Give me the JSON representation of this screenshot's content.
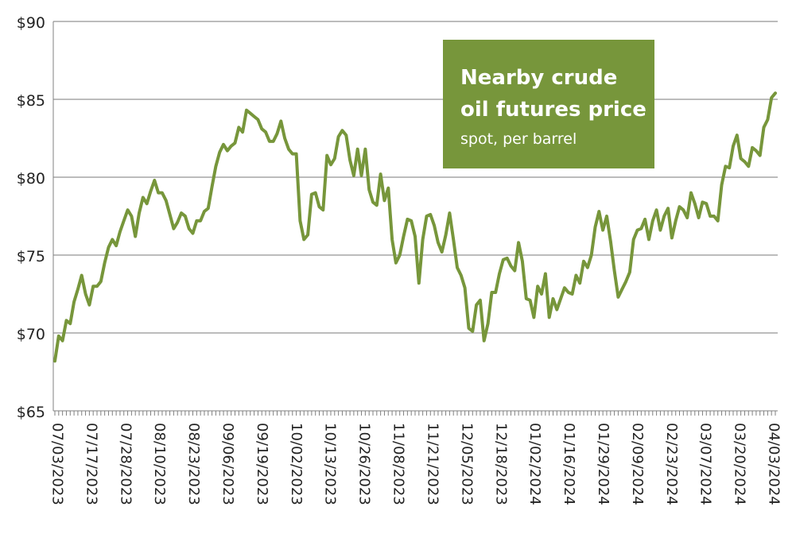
{
  "chart_data": {
    "type": "line",
    "title": "Nearby crude oil futures price",
    "subtitle": "spot, per barrel",
    "xlabel": "",
    "ylabel": "",
    "ylim": [
      65,
      90
    ],
    "y_ticks": [
      "$90",
      "$85",
      "$80",
      "$75",
      "$70",
      "$65"
    ],
    "y_tick_values": [
      90,
      85,
      80,
      75,
      70,
      65
    ],
    "x_tick_labels": [
      "07/03/2023",
      "07/17/2023",
      "07/28/2023",
      "08/10/2023",
      "08/23/2023",
      "09/06/2023",
      "09/19/2023",
      "10/02/2023",
      "10/13/2023",
      "10/26/2023",
      "11/08/2023",
      "11/21/2023",
      "12/05/2023",
      "12/18/2023",
      "01/02/2024",
      "01/16/2024",
      "01/29/2024",
      "02/09/2024",
      "02/23/2024",
      "03/07/2024",
      "03/20/2024",
      "04/03/2024"
    ],
    "grid": true,
    "legend": "none",
    "colors": {
      "line": "#77963b",
      "title_box": "#77963b",
      "grid": "#a6a6a6",
      "axis": "#808080"
    },
    "series": [
      {
        "values": [
          68.2,
          69.8,
          69.5,
          70.8,
          70.6,
          72.0,
          72.8,
          73.7,
          72.5,
          71.8,
          73.0,
          73.0,
          73.3,
          74.5,
          75.5,
          76.0,
          75.6,
          76.5,
          77.2,
          77.9,
          77.5,
          76.2,
          77.7,
          78.7,
          78.3,
          79.1,
          79.8,
          79.0,
          79.0,
          78.5,
          77.6,
          76.7,
          77.1,
          77.7,
          77.5,
          76.7,
          76.4,
          77.2,
          77.2,
          77.8,
          78.0,
          79.4,
          80.7,
          81.6,
          82.1,
          81.7,
          82.0,
          82.2,
          83.2,
          82.9,
          84.3,
          84.1,
          83.9,
          83.7,
          83.1,
          82.9,
          82.3,
          82.3,
          82.8,
          83.6,
          82.5,
          81.8,
          81.5,
          81.5,
          77.2,
          76.0,
          76.3,
          78.9,
          79.0,
          78.1,
          77.9,
          81.4,
          80.8,
          81.2,
          82.6,
          83.0,
          82.7,
          81.1,
          80.1,
          81.8,
          80.1,
          81.8,
          79.2,
          78.4,
          78.2,
          80.2,
          78.5,
          79.3,
          76.0,
          74.5,
          75.0,
          76.2,
          77.3,
          77.2,
          76.2,
          73.2,
          76.0,
          77.5,
          77.6,
          76.9,
          75.8,
          75.2,
          76.3,
          77.7,
          76.0,
          74.2,
          73.7,
          72.9,
          70.3,
          70.1,
          71.8,
          72.1,
          69.5,
          70.6,
          72.6,
          72.6,
          73.8,
          74.7,
          74.8,
          74.3,
          74.0,
          75.8,
          74.6,
          72.2,
          72.1,
          71.0,
          73.0,
          72.5,
          73.8,
          71.0,
          72.2,
          71.5,
          72.2,
          72.9,
          72.6,
          72.5,
          73.7,
          73.2,
          74.6,
          74.2,
          75.0,
          76.8,
          77.8,
          76.6,
          77.5,
          75.9,
          74.0,
          72.3,
          72.8,
          73.3,
          73.9,
          76.0,
          76.6,
          76.7,
          77.3,
          76.0,
          77.2,
          77.9,
          76.6,
          77.5,
          78.0,
          76.1,
          77.2,
          78.1,
          77.9,
          77.4,
          79.0,
          78.3,
          77.4,
          78.4,
          78.3,
          77.5,
          77.5,
          77.2,
          79.5,
          80.7,
          80.6,
          82.0,
          82.7,
          81.2,
          81.0,
          80.7,
          81.9,
          81.7,
          81.4,
          83.2,
          83.7,
          85.1,
          85.4
        ]
      }
    ]
  }
}
